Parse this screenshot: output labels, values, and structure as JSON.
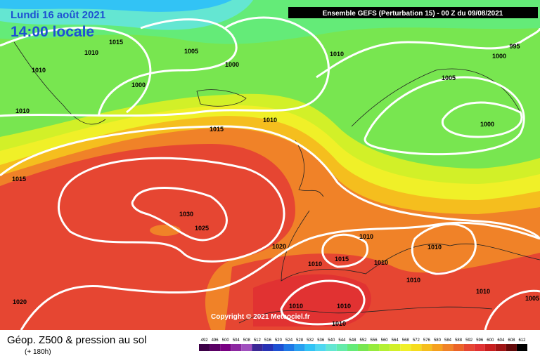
{
  "header": {
    "date": "Lundi 16 août 2021",
    "time": "14:00 locale",
    "run": "Ensemble GEFS  (Perturbation 15)  -  00 Z du 09/08/2021"
  },
  "isobar_labels": [
    "1015",
    "1010",
    "1005",
    "1000",
    "1010",
    "1000",
    "1010",
    "1010",
    "995",
    "1000",
    "1005",
    "1000",
    "1010",
    "1015",
    "1015",
    "1030",
    "1025",
    "1020",
    "1010",
    "1010",
    "1015",
    "1010",
    "1010",
    "1010",
    "1010",
    "1020",
    "1010",
    "1010",
    "1010",
    "1005"
  ],
  "copyright": "Copyright © 2021 Meteociel.fr",
  "legend": {
    "title": "Géop. Z500 & pression au sol",
    "subtitle": "(+ 180h)",
    "scale": [
      492,
      496,
      500,
      504,
      508,
      512,
      516,
      520,
      524,
      528,
      532,
      536,
      540,
      544,
      548,
      552,
      556,
      560,
      564,
      568,
      572,
      576,
      580,
      584,
      588,
      592,
      596,
      600,
      604,
      608,
      612
    ],
    "colors": [
      "#3c0046",
      "#5a0064",
      "#780082",
      "#8c28a0",
      "#a050be",
      "#3c2896",
      "#2832b4",
      "#1e50d2",
      "#1e78e6",
      "#28a0f0",
      "#32c3f5",
      "#50d7f0",
      "#64e6d2",
      "#64ebaa",
      "#64eb78",
      "#78e650",
      "#96eb3c",
      "#b4f032",
      "#d2f028",
      "#f0f028",
      "#f5dc1e",
      "#f5be1e",
      "#f5a01e",
      "#f08228",
      "#eb6428",
      "#e64632",
      "#e13232",
      "#c81e1e",
      "#a01414",
      "#640a0a",
      "#000000"
    ]
  }
}
